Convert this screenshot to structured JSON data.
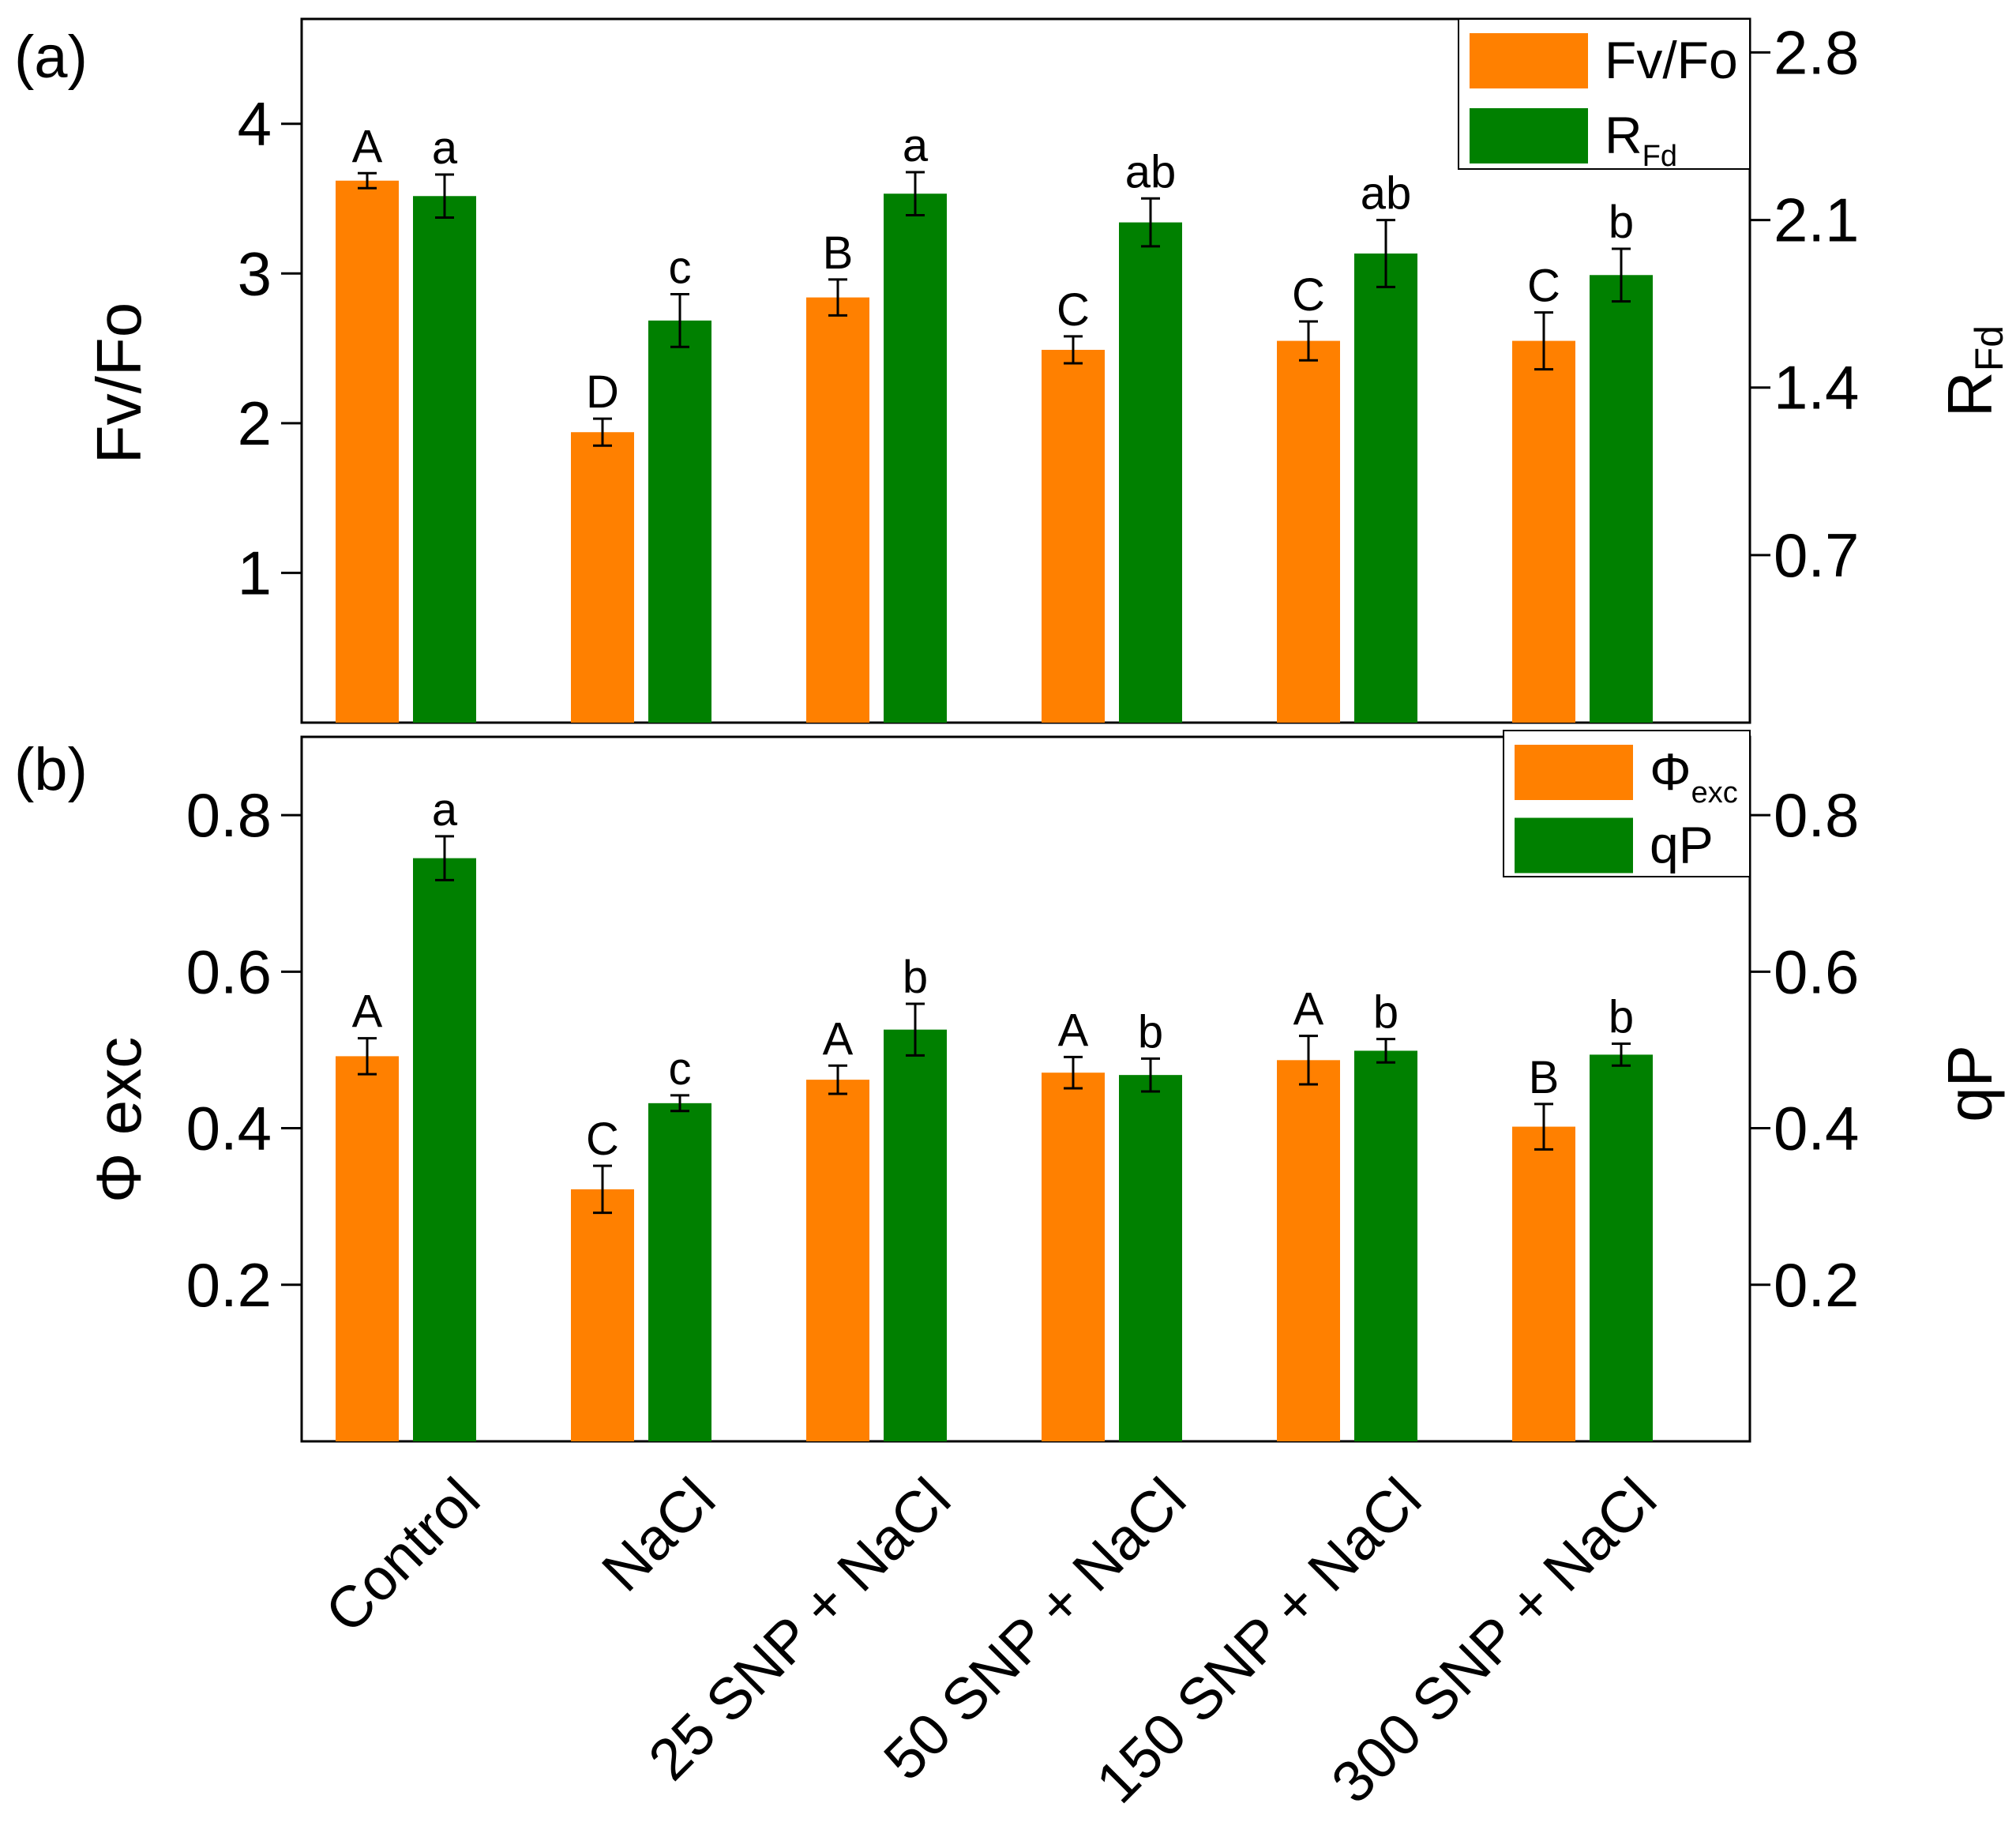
{
  "chart_data": [
    {
      "panel_label": "(a)",
      "type": "bar",
      "categories": [
        "Control",
        "NaCl",
        "25 SNP + NaCl",
        "50 SNP + NaCl",
        "150 SNP + NaCl",
        "300 SNP + NaCl"
      ],
      "series": [
        {
          "name": "Fv/Fo",
          "legend_main": "Fv/Fo",
          "legend_sub": "",
          "axis": "left",
          "color": "#ff8000",
          "values": [
            3.62,
            1.94,
            2.84,
            2.49,
            2.55,
            2.55
          ],
          "errors": [
            0.05,
            0.09,
            0.12,
            0.09,
            0.13,
            0.19
          ],
          "labels": [
            "A",
            "D",
            "B",
            "C",
            "C",
            "C"
          ]
        },
        {
          "name": "RFd",
          "legend_main": "R",
          "legend_sub": "Fd",
          "axis": "right",
          "color": "#008000",
          "values": [
            2.2,
            1.68,
            2.21,
            2.09,
            1.96,
            1.87
          ],
          "errors": [
            0.09,
            0.11,
            0.09,
            0.1,
            0.14,
            0.11
          ],
          "labels": [
            "a",
            "c",
            "a",
            "ab",
            "ab",
            "b"
          ]
        }
      ],
      "left_axis": {
        "title": "Fv/Fo",
        "ylim": [
          0,
          4.7
        ],
        "ticks": [
          1,
          2,
          3,
          4
        ],
        "tick_labels": [
          "1",
          "2",
          "3",
          "4"
        ]
      },
      "right_axis": {
        "title_main": "R",
        "title_sub": "Fd",
        "ylim": [
          0,
          2.94
        ],
        "ticks": [
          0.7,
          1.4,
          2.1,
          2.8
        ],
        "tick_labels": [
          "0.7",
          "1.4",
          "2.1",
          "2.8"
        ]
      },
      "legend_position": "top-right"
    },
    {
      "panel_label": "(b)",
      "type": "bar",
      "categories": [
        "Control",
        "NaCl",
        "25 SNP + NaCl",
        "50 SNP + NaCl",
        "150 SNP + NaCl",
        "300 SNP + NaCl"
      ],
      "series": [
        {
          "name": "Φexc",
          "legend_main": "Φ",
          "legend_sub": "exc",
          "axis": "left",
          "color": "#ff8000",
          "values": [
            0.492,
            0.322,
            0.462,
            0.471,
            0.487,
            0.402
          ],
          "errors": [
            0.023,
            0.03,
            0.018,
            0.02,
            0.031,
            0.029
          ],
          "labels": [
            "A",
            "C",
            "A",
            "A",
            "A",
            "B"
          ]
        },
        {
          "name": "qP",
          "legend_main": "qP",
          "legend_sub": "",
          "axis": "right",
          "color": "#008000",
          "values": [
            0.745,
            0.432,
            0.526,
            0.468,
            0.499,
            0.494
          ],
          "errors": [
            0.028,
            0.01,
            0.033,
            0.021,
            0.015,
            0.014
          ],
          "labels": [
            "a",
            "c",
            "b",
            "b",
            "b",
            "b"
          ]
        }
      ],
      "left_axis": {
        "title": "Φ exc",
        "ylim": [
          0,
          0.9
        ],
        "ticks": [
          0.2,
          0.4,
          0.6,
          0.8
        ],
        "tick_labels": [
          "0.2",
          "0.4",
          "0.6",
          "0.8"
        ]
      },
      "right_axis": {
        "title_main": "qP",
        "title_sub": "",
        "ylim": [
          0,
          0.9
        ],
        "ticks": [
          0.2,
          0.4,
          0.6,
          0.8
        ],
        "tick_labels": [
          "0.2",
          "0.4",
          "0.6",
          "0.8"
        ]
      },
      "legend_position": "top-right"
    }
  ]
}
